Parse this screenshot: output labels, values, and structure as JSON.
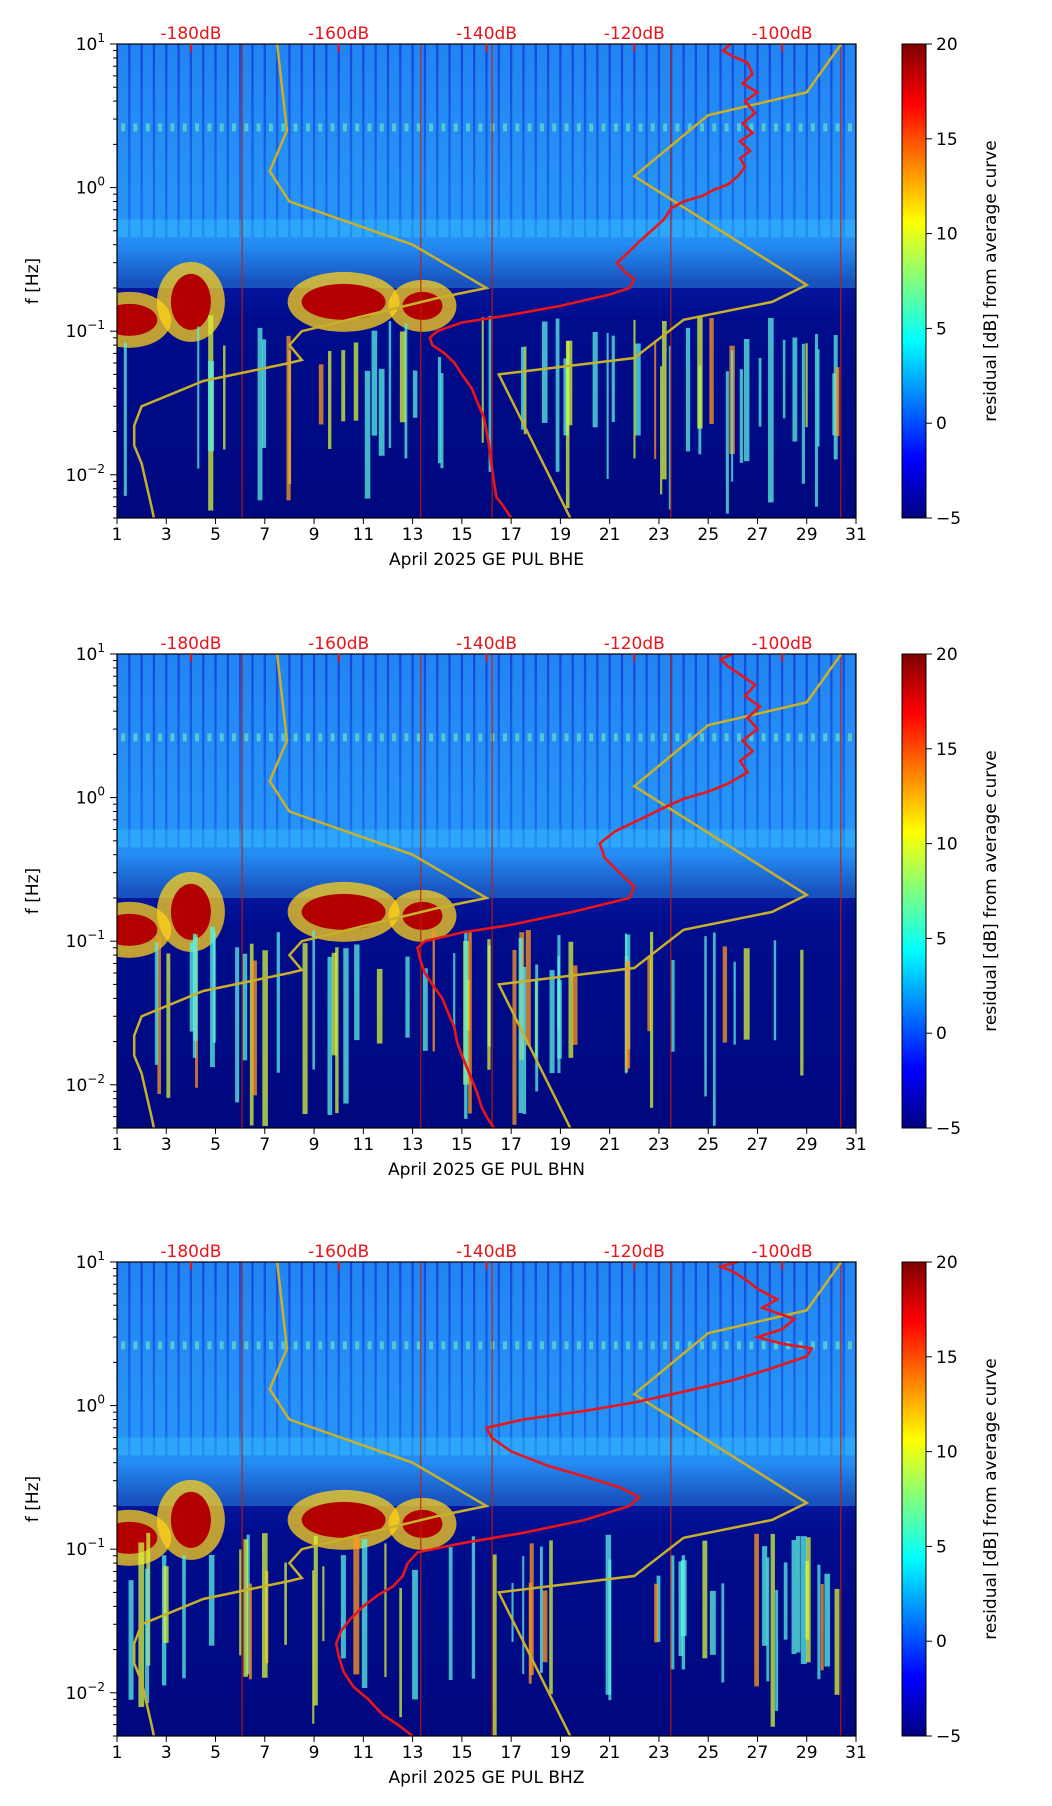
{
  "colorbar": {
    "label": "residual [dB] from average curve",
    "ticks": [
      -5,
      0,
      5,
      10,
      15,
      20
    ],
    "range": [
      -5,
      20
    ]
  },
  "colors": {
    "noise_model": "#c8b02a",
    "psd_curve": "#e8151b",
    "db_labels": "#e8151b",
    "background_low": "#000a8a"
  },
  "chart_data": [
    {
      "type": "heatmap",
      "channel": "BHE",
      "xlabel": "April 2025 GE PUL  BHE",
      "ylabel": "f [Hz]",
      "x_ticks": [
        "1",
        "3",
        "5",
        "7",
        "9",
        "11",
        "13",
        "15",
        "17",
        "19",
        "21",
        "23",
        "25",
        "27",
        "29",
        "31"
      ],
      "xlim": [
        1,
        31
      ],
      "ylim": [
        0.005,
        10
      ],
      "y_ticks": [
        {
          "value": 0.01,
          "base": "10",
          "exp": "−2"
        },
        {
          "value": 0.1,
          "base": "10",
          "exp": "−1"
        },
        {
          "value": 1,
          "base": "10",
          "exp": "0"
        },
        {
          "value": 10,
          "base": "10",
          "exp": "1"
        }
      ],
      "db_top_labels": [
        {
          "day": 4,
          "text": "-180dB"
        },
        {
          "day": 10,
          "text": "-160dB"
        },
        {
          "day": 16,
          "text": "-140dB"
        },
        {
          "day": 22,
          "text": "-120dB"
        },
        {
          "day": 28,
          "text": "-100dB"
        }
      ],
      "red_curve": [
        [
          17,
          0.005
        ],
        [
          16.7,
          0.006
        ],
        [
          16.4,
          0.007
        ],
        [
          16.3,
          0.009
        ],
        [
          16.2,
          0.012
        ],
        [
          16.1,
          0.016
        ],
        [
          16.0,
          0.02
        ],
        [
          15.9,
          0.025
        ],
        [
          15.7,
          0.03
        ],
        [
          15.4,
          0.04
        ],
        [
          15.0,
          0.05
        ],
        [
          14.7,
          0.06
        ],
        [
          14.3,
          0.07
        ],
        [
          13.8,
          0.08
        ],
        [
          13.7,
          0.09
        ],
        [
          14.0,
          0.1
        ],
        [
          15.0,
          0.115
        ],
        [
          17.0,
          0.13
        ],
        [
          19.0,
          0.15
        ],
        [
          21.0,
          0.18
        ],
        [
          21.8,
          0.2
        ],
        [
          22.0,
          0.23
        ],
        [
          21.6,
          0.26
        ],
        [
          21.3,
          0.3
        ],
        [
          21.8,
          0.36
        ],
        [
          22.2,
          0.42
        ],
        [
          22.8,
          0.52
        ],
        [
          23.2,
          0.6
        ],
        [
          23.5,
          0.72
        ],
        [
          24.0,
          0.8
        ],
        [
          24.8,
          0.88
        ],
        [
          25.2,
          0.96
        ],
        [
          25.8,
          1.05
        ],
        [
          26.2,
          1.2
        ],
        [
          26.5,
          1.4
        ],
        [
          26.3,
          1.6
        ],
        [
          26.7,
          1.8
        ],
        [
          26.3,
          2.1
        ],
        [
          26.8,
          2.4
        ],
        [
          26.4,
          2.8
        ],
        [
          26.9,
          3.3
        ],
        [
          26.5,
          4.0
        ],
        [
          27.0,
          4.6
        ],
        [
          26.4,
          5.3
        ],
        [
          26.8,
          6.2
        ],
        [
          26.6,
          7.4
        ],
        [
          26.0,
          8.2
        ],
        [
          25.6,
          9.0
        ],
        [
          25.9,
          10
        ]
      ]
    },
    {
      "type": "heatmap",
      "channel": "BHN",
      "xlabel": "April 2025 GE PUL  BHN",
      "ylabel": "f [Hz]",
      "x_ticks": [
        "1",
        "3",
        "5",
        "7",
        "9",
        "11",
        "13",
        "15",
        "17",
        "19",
        "21",
        "23",
        "25",
        "27",
        "29",
        "31"
      ],
      "xlim": [
        1,
        31
      ],
      "ylim": [
        0.005,
        10
      ],
      "y_ticks": [
        {
          "value": 0.01,
          "base": "10",
          "exp": "−2"
        },
        {
          "value": 0.1,
          "base": "10",
          "exp": "−1"
        },
        {
          "value": 1,
          "base": "10",
          "exp": "0"
        },
        {
          "value": 10,
          "base": "10",
          "exp": "1"
        }
      ],
      "db_top_labels": [
        {
          "day": 4,
          "text": "-180dB"
        },
        {
          "day": 10,
          "text": "-160dB"
        },
        {
          "day": 16,
          "text": "-140dB"
        },
        {
          "day": 22,
          "text": "-120dB"
        },
        {
          "day": 28,
          "text": "-100dB"
        }
      ],
      "red_curve": [
        [
          16.3,
          0.005
        ],
        [
          16.0,
          0.006
        ],
        [
          15.8,
          0.007
        ],
        [
          15.6,
          0.009
        ],
        [
          15.3,
          0.012
        ],
        [
          15.0,
          0.016
        ],
        [
          14.8,
          0.02
        ],
        [
          14.7,
          0.025
        ],
        [
          14.5,
          0.03
        ],
        [
          14.2,
          0.04
        ],
        [
          13.8,
          0.05
        ],
        [
          13.5,
          0.06
        ],
        [
          13.3,
          0.075
        ],
        [
          13.2,
          0.09
        ],
        [
          13.5,
          0.1
        ],
        [
          15.0,
          0.115
        ],
        [
          17.0,
          0.13
        ],
        [
          19.5,
          0.16
        ],
        [
          21.8,
          0.2
        ],
        [
          22.0,
          0.24
        ],
        [
          21.4,
          0.3
        ],
        [
          20.8,
          0.38
        ],
        [
          20.6,
          0.48
        ],
        [
          21.2,
          0.58
        ],
        [
          22.2,
          0.7
        ],
        [
          23.2,
          0.85
        ],
        [
          24.0,
          0.98
        ],
        [
          25.0,
          1.1
        ],
        [
          25.8,
          1.25
        ],
        [
          26.6,
          1.5
        ],
        [
          26.3,
          1.8
        ],
        [
          26.8,
          2.1
        ],
        [
          26.4,
          2.5
        ],
        [
          27.0,
          3.0
        ],
        [
          26.6,
          3.6
        ],
        [
          27.1,
          4.3
        ],
        [
          26.5,
          5.1
        ],
        [
          26.9,
          6.1
        ],
        [
          26.3,
          7.2
        ],
        [
          25.8,
          8.2
        ],
        [
          25.5,
          9.2
        ],
        [
          26.0,
          10
        ]
      ]
    },
    {
      "type": "heatmap",
      "channel": "BHZ",
      "xlabel": "April 2025 GE PUL  BHZ",
      "ylabel": "f [Hz]",
      "x_ticks": [
        "1",
        "3",
        "5",
        "7",
        "9",
        "11",
        "13",
        "15",
        "17",
        "19",
        "21",
        "23",
        "25",
        "27",
        "29",
        "31"
      ],
      "xlim": [
        1,
        31
      ],
      "ylim": [
        0.005,
        10
      ],
      "y_ticks": [
        {
          "value": 0.01,
          "base": "10",
          "exp": "−2"
        },
        {
          "value": 0.1,
          "base": "10",
          "exp": "−1"
        },
        {
          "value": 1,
          "base": "10",
          "exp": "0"
        },
        {
          "value": 10,
          "base": "10",
          "exp": "1"
        }
      ],
      "db_top_labels": [
        {
          "day": 4,
          "text": "-180dB"
        },
        {
          "day": 10,
          "text": "-160dB"
        },
        {
          "day": 16,
          "text": "-140dB"
        },
        {
          "day": 22,
          "text": "-120dB"
        },
        {
          "day": 28,
          "text": "-100dB"
        }
      ],
      "red_curve": [
        [
          13.0,
          0.005
        ],
        [
          12.4,
          0.006
        ],
        [
          11.8,
          0.007
        ],
        [
          11.2,
          0.009
        ],
        [
          10.6,
          0.011
        ],
        [
          10.2,
          0.014
        ],
        [
          10.0,
          0.018
        ],
        [
          9.9,
          0.022
        ],
        [
          10.1,
          0.027
        ],
        [
          10.5,
          0.033
        ],
        [
          11.0,
          0.04
        ],
        [
          11.6,
          0.048
        ],
        [
          12.2,
          0.055
        ],
        [
          12.6,
          0.065
        ],
        [
          12.8,
          0.08
        ],
        [
          13.2,
          0.095
        ],
        [
          15.0,
          0.11
        ],
        [
          17.5,
          0.13
        ],
        [
          20.0,
          0.16
        ],
        [
          21.8,
          0.2
        ],
        [
          22.2,
          0.23
        ],
        [
          21.4,
          0.27
        ],
        [
          20.0,
          0.32
        ],
        [
          18.5,
          0.38
        ],
        [
          17.0,
          0.48
        ],
        [
          16.2,
          0.6
        ],
        [
          16.0,
          0.7
        ],
        [
          17.5,
          0.8
        ],
        [
          20.0,
          0.92
        ],
        [
          22.0,
          1.05
        ],
        [
          24.0,
          1.25
        ],
        [
          26.0,
          1.5
        ],
        [
          27.5,
          1.8
        ],
        [
          29.0,
          2.2
        ],
        [
          29.2,
          2.5
        ],
        [
          28.0,
          2.7
        ],
        [
          27.0,
          3.0
        ],
        [
          28.0,
          3.4
        ],
        [
          28.5,
          4.0
        ],
        [
          27.2,
          4.8
        ],
        [
          27.8,
          5.5
        ],
        [
          27.0,
          6.5
        ],
        [
          26.5,
          7.6
        ],
        [
          26.0,
          8.6
        ],
        [
          25.5,
          9.3
        ],
        [
          26.2,
          10
        ]
      ]
    }
  ],
  "noise_model_lines": {
    "nlnm": [
      [
        2.5,
        0.005
      ],
      [
        2.4,
        0.006
      ],
      [
        2.0,
        0.012
      ],
      [
        1.7,
        0.016
      ],
      [
        1.7,
        0.022
      ],
      [
        2.0,
        0.03
      ],
      [
        4.5,
        0.045
      ],
      [
        8.0,
        0.06
      ],
      [
        8.5,
        0.063
      ],
      [
        8.0,
        0.08
      ],
      [
        8.5,
        0.1
      ],
      [
        14.0,
        0.17
      ],
      [
        16.0,
        0.2
      ],
      [
        13.0,
        0.4
      ],
      [
        8.0,
        0.8
      ],
      [
        7.2,
        1.3
      ],
      [
        7.9,
        2.5
      ],
      [
        7.5,
        10
      ]
    ],
    "nhnm": [
      [
        19.4,
        0.005
      ],
      [
        16.5,
        0.05
      ],
      [
        22.0,
        0.065
      ],
      [
        24.0,
        0.12
      ],
      [
        27.6,
        0.16
      ],
      [
        29.0,
        0.21
      ],
      [
        22.0,
        1.2
      ],
      [
        25.0,
        3.2
      ],
      [
        29.0,
        4.6
      ],
      [
        30.4,
        10
      ]
    ]
  }
}
